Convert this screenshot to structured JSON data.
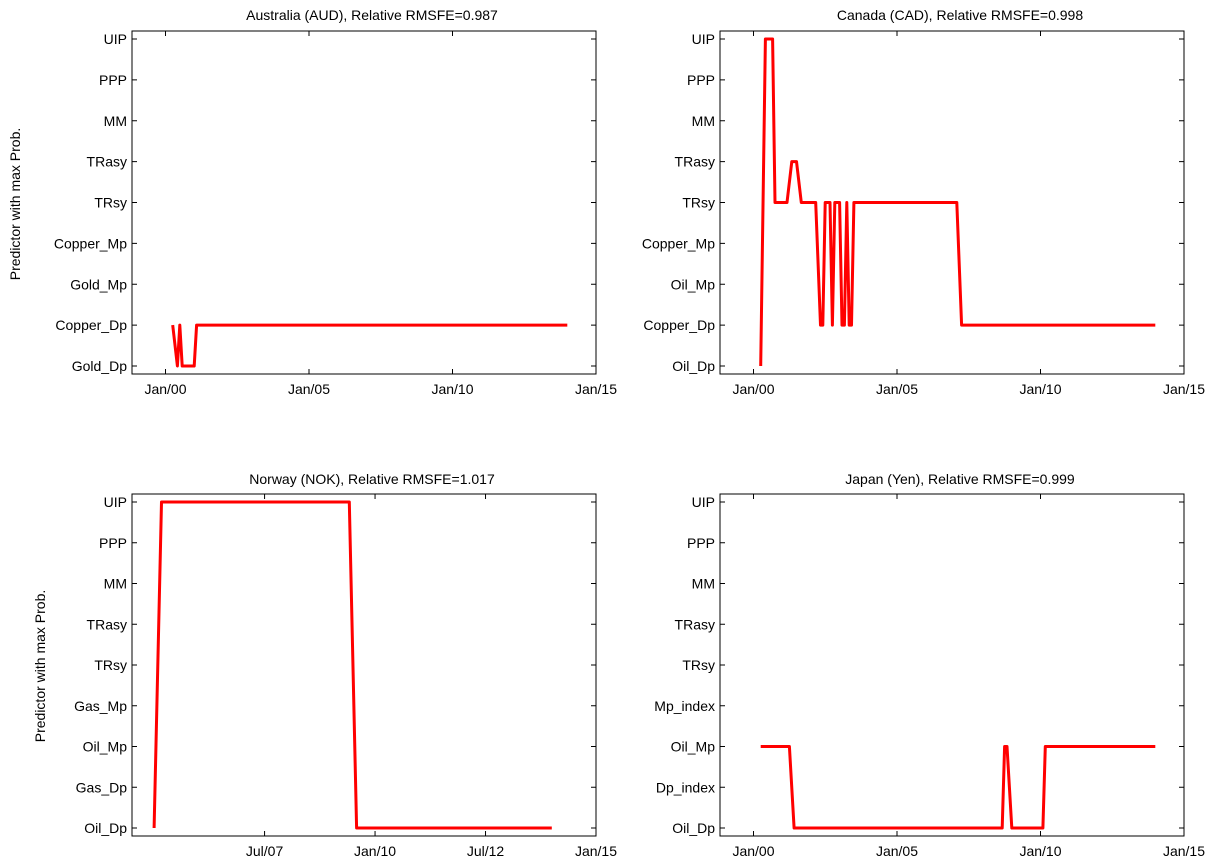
{
  "chart_data": [
    {
      "type": "line",
      "title": "Australia (AUD), Relative RMSFE=0.987",
      "ylabel": "Predictor with max Prob.",
      "xlabel": "",
      "x_ticks": [
        "Jan/00",
        "Jan/05",
        "Jan/10",
        "Jan/15"
      ],
      "xlim": [
        "1998-11",
        "2015-01"
      ],
      "y_categories": [
        "Gold_Dp",
        "Copper_Dp",
        "Gold_Mp",
        "Copper_Mp",
        "TRsy",
        "TRasy",
        "MM",
        "PPP",
        "UIP"
      ],
      "series": [
        {
          "color": "#ff0000",
          "points": [
            [
              "2000-04",
              "Copper_Dp"
            ],
            [
              "2000-06",
              "Gold_Dp"
            ],
            [
              "2000-07",
              "Copper_Dp"
            ],
            [
              "2000-08",
              "Gold_Dp"
            ],
            [
              "2001-01",
              "Gold_Dp"
            ],
            [
              "2001-02",
              "Copper_Dp"
            ],
            [
              "2014-01",
              "Copper_Dp"
            ]
          ]
        }
      ]
    },
    {
      "type": "line",
      "title": "Canada (CAD), Relative RMSFE=0.998",
      "ylabel": "",
      "xlabel": "",
      "x_ticks": [
        "Jan/00",
        "Jan/05",
        "Jan/10",
        "Jan/15"
      ],
      "xlim": [
        "1998-11",
        "2015-01"
      ],
      "y_categories": [
        "Oil_Dp",
        "Copper_Dp",
        "Oil_Mp",
        "Copper_Mp",
        "TRsy",
        "TRasy",
        "MM",
        "PPP",
        "UIP"
      ],
      "series": [
        {
          "color": "#ff0000",
          "points": [
            [
              "2000-04",
              "Oil_Dp"
            ],
            [
              "2000-06",
              "UIP"
            ],
            [
              "2000-09",
              "UIP"
            ],
            [
              "2000-10",
              "TRsy"
            ],
            [
              "2001-03",
              "TRsy"
            ],
            [
              "2001-05",
              "TRasy"
            ],
            [
              "2001-07",
              "TRasy"
            ],
            [
              "2001-09",
              "TRsy"
            ],
            [
              "2002-03",
              "TRsy"
            ],
            [
              "2002-05",
              "Copper_Dp"
            ],
            [
              "2002-06",
              "Copper_Dp"
            ],
            [
              "2002-07",
              "TRsy"
            ],
            [
              "2002-09",
              "TRsy"
            ],
            [
              "2002-10",
              "Copper_Dp"
            ],
            [
              "2002-11",
              "TRsy"
            ],
            [
              "2003-01",
              "TRsy"
            ],
            [
              "2003-02",
              "Copper_Dp"
            ],
            [
              "2003-03",
              "Copper_Dp"
            ],
            [
              "2003-04",
              "TRsy"
            ],
            [
              "2003-05",
              "Copper_Dp"
            ],
            [
              "2003-06",
              "Copper_Dp"
            ],
            [
              "2003-07",
              "TRsy"
            ],
            [
              "2007-02",
              "TRsy"
            ],
            [
              "2007-04",
              "Copper_Dp"
            ],
            [
              "2014-01",
              "Copper_Dp"
            ]
          ]
        }
      ]
    },
    {
      "type": "line",
      "title": "Norway (NOK), Relative RMSFE=1.017",
      "ylabel": "Predictor with max Prob.",
      "xlabel": "",
      "x_ticks": [
        "Jul/07",
        "Jan/10",
        "Jul/12",
        "Jan/15"
      ],
      "xlim": [
        "2004-07",
        "2015-01"
      ],
      "y_categories": [
        "Oil_Dp",
        "Gas_Dp",
        "Oil_Mp",
        "Gas_Mp",
        "TRsy",
        "TRasy",
        "MM",
        "PPP",
        "UIP"
      ],
      "series": [
        {
          "color": "#ff0000",
          "points": [
            [
              "2005-01",
              "Oil_Dp"
            ],
            [
              "2005-03",
              "UIP"
            ],
            [
              "2009-06",
              "UIP"
            ],
            [
              "2009-08",
              "Oil_Dp"
            ],
            [
              "2014-01",
              "Oil_Dp"
            ]
          ]
        }
      ]
    },
    {
      "type": "line",
      "title": "Japan (Yen), Relative RMSFE=0.999",
      "ylabel": "",
      "xlabel": "",
      "x_ticks": [
        "Jan/00",
        "Jan/05",
        "Jan/10",
        "Jan/15"
      ],
      "xlim": [
        "1998-11",
        "2015-01"
      ],
      "y_categories": [
        "Oil_Dp",
        "Dp_index",
        "Oil_Mp",
        "Mp_index",
        "TRsy",
        "TRasy",
        "MM",
        "PPP",
        "UIP"
      ],
      "series": [
        {
          "color": "#ff0000",
          "points": [
            [
              "2000-04",
              "Oil_Mp"
            ],
            [
              "2001-04",
              "Oil_Mp"
            ],
            [
              "2001-06",
              "Oil_Dp"
            ],
            [
              "2008-09",
              "Oil_Dp"
            ],
            [
              "2008-10",
              "Oil_Mp"
            ],
            [
              "2008-11",
              "Oil_Mp"
            ],
            [
              "2009-01",
              "Oil_Dp"
            ],
            [
              "2010-02",
              "Oil_Dp"
            ],
            [
              "2010-03",
              "Oil_Mp"
            ],
            [
              "2014-01",
              "Oil_Mp"
            ]
          ]
        }
      ]
    }
  ]
}
